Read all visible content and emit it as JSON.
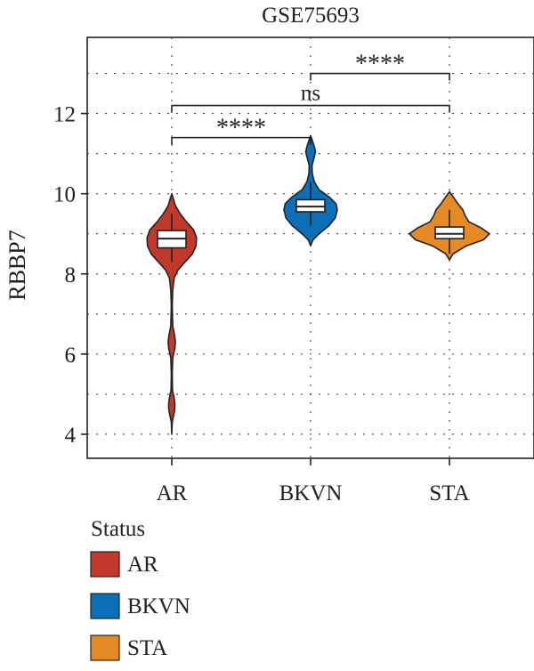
{
  "chart_data": {
    "type": "violin",
    "title": "GSE75693",
    "xlabel": "",
    "ylabel": "RBBP7",
    "categories": [
      "AR",
      "BKVN",
      "STA"
    ],
    "ylim": [
      3.4,
      13.9
    ],
    "yticks": [
      4,
      6,
      8,
      10,
      12
    ],
    "grid": true,
    "colors": {
      "AR": "#c0392b",
      "BKVN": "#0a6fb7",
      "STA": "#e58a25"
    },
    "series": [
      {
        "name": "AR",
        "box": {
          "q1": 8.65,
          "median": 8.88,
          "q3": 9.08,
          "whisker_low": 8.3,
          "whisker_high": 9.5
        },
        "density": [
          [
            4.0,
            0.0
          ],
          [
            4.3,
            0.02
          ],
          [
            4.6,
            0.12
          ],
          [
            4.75,
            0.13
          ],
          [
            4.9,
            0.1
          ],
          [
            5.1,
            0.03
          ],
          [
            5.5,
            0.02
          ],
          [
            5.9,
            0.04
          ],
          [
            6.15,
            0.13
          ],
          [
            6.3,
            0.15
          ],
          [
            6.45,
            0.12
          ],
          [
            6.7,
            0.04
          ],
          [
            7.2,
            0.02
          ],
          [
            7.6,
            0.04
          ],
          [
            7.9,
            0.1
          ],
          [
            8.1,
            0.26
          ],
          [
            8.3,
            0.55
          ],
          [
            8.5,
            0.85
          ],
          [
            8.7,
            1.0
          ],
          [
            8.9,
            1.02
          ],
          [
            9.1,
            0.9
          ],
          [
            9.3,
            0.6
          ],
          [
            9.5,
            0.35
          ],
          [
            9.7,
            0.15
          ],
          [
            9.9,
            0.05
          ],
          [
            10.0,
            0.0
          ]
        ]
      },
      {
        "name": "BKVN",
        "box": {
          "q1": 9.55,
          "median": 9.68,
          "q3": 9.85,
          "whisker_low": 9.2,
          "whisker_high": 10.3
        },
        "density": [
          [
            8.7,
            0.0
          ],
          [
            8.85,
            0.1
          ],
          [
            9.0,
            0.35
          ],
          [
            9.2,
            0.75
          ],
          [
            9.4,
            1.02
          ],
          [
            9.6,
            1.1
          ],
          [
            9.75,
            1.05
          ],
          [
            9.9,
            0.8
          ],
          [
            10.1,
            0.35
          ],
          [
            10.3,
            0.15
          ],
          [
            10.5,
            0.07
          ],
          [
            10.7,
            0.06
          ],
          [
            10.85,
            0.12
          ],
          [
            11.05,
            0.2
          ],
          [
            11.2,
            0.14
          ],
          [
            11.35,
            0.06
          ],
          [
            11.45,
            0.0
          ]
        ]
      },
      {
        "name": "STA",
        "box": {
          "q1": 8.88,
          "median": 9.0,
          "q3": 9.17,
          "whisker_low": 8.5,
          "whisker_high": 9.6
        },
        "density": [
          [
            8.35,
            0.0
          ],
          [
            8.5,
            0.15
          ],
          [
            8.7,
            0.7
          ],
          [
            8.85,
            1.4
          ],
          [
            9.0,
            1.65
          ],
          [
            9.15,
            1.3
          ],
          [
            9.3,
            0.8
          ],
          [
            9.45,
            0.65
          ],
          [
            9.6,
            0.55
          ],
          [
            9.75,
            0.35
          ],
          [
            9.9,
            0.18
          ],
          [
            10.05,
            0.0
          ]
        ]
      }
    ],
    "significance": [
      {
        "from": "AR",
        "to": "BKVN",
        "y": 11.4,
        "label": "****"
      },
      {
        "from": "AR",
        "to": "STA",
        "y": 12.2,
        "label": "ns"
      },
      {
        "from": "BKVN",
        "to": "STA",
        "y": 13.0,
        "label": "****"
      }
    ],
    "legend": {
      "title": "Status",
      "position": "bottom-left",
      "items": [
        "AR",
        "BKVN",
        "STA"
      ]
    }
  }
}
